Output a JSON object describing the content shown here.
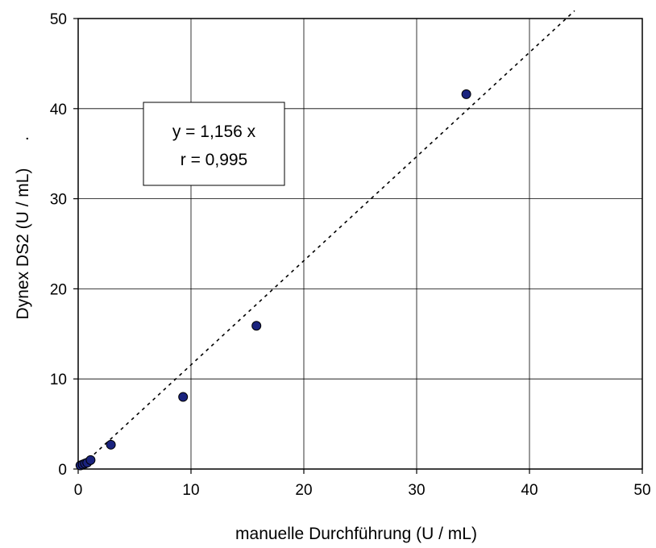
{
  "chart_data": {
    "type": "scatter",
    "title": "",
    "xlabel": "manuelle Durchführung (U / mL)",
    "ylabel": "Dynex DS2 (U / mL)",
    "ylabel_suffix": ".",
    "xlim": [
      0,
      50
    ],
    "ylim": [
      0,
      50
    ],
    "xticks": [
      0,
      10,
      20,
      30,
      40,
      50
    ],
    "yticks": [
      0,
      10,
      20,
      30,
      40,
      50
    ],
    "grid": true,
    "legend": "none",
    "series": [
      {
        "points": [
          {
            "x": 0.2,
            "y": 0.4
          },
          {
            "x": 0.4,
            "y": 0.5
          },
          {
            "x": 0.6,
            "y": 0.6
          },
          {
            "x": 0.8,
            "y": 0.7
          },
          {
            "x": 1.1,
            "y": 1.0
          },
          {
            "x": 2.9,
            "y": 2.7
          },
          {
            "x": 9.3,
            "y": 8.0
          },
          {
            "x": 15.8,
            "y": 15.9
          },
          {
            "x": 34.4,
            "y": 41.6
          }
        ],
        "marker_color": "#1a237e"
      }
    ],
    "trendline": {
      "slope": 1.156,
      "x_start": 0,
      "x_end": 44,
      "style": "dotted"
    },
    "annotation": {
      "lines": [
        "y = 1,156 x",
        "r = 0,995"
      ]
    }
  }
}
